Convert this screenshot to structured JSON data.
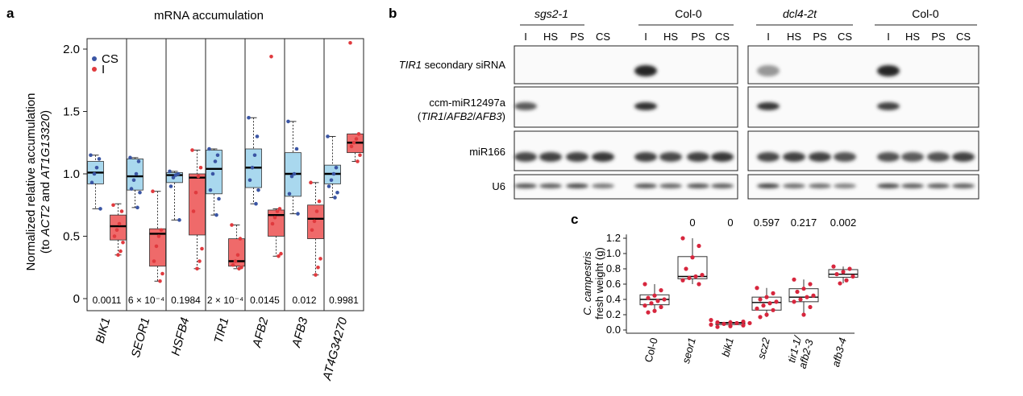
{
  "panels": {
    "a": {
      "label": "a",
      "title": "mRNA accumulation",
      "ylabel_line1": "Normalized relative accumulation",
      "ylabel_line2_parts": [
        {
          "t": "(to ",
          "i": false
        },
        {
          "t": "ACT2",
          "i": true
        },
        {
          "t": " and ",
          "i": false
        },
        {
          "t": "AT1G13320",
          "i": true
        },
        {
          "t": ")",
          "i": false
        }
      ],
      "legend": [
        {
          "label": "CS",
          "color": "#3a55a4"
        },
        {
          "label": "I",
          "color": "#e03a3e"
        }
      ]
    },
    "b": {
      "label": "b",
      "groups": [
        {
          "label": "sgs2-1",
          "italic": true
        },
        {
          "label": "Col-0",
          "italic": false
        },
        {
          "label": "dcl4-2t",
          "italic": true
        },
        {
          "label": "Col-0",
          "italic": false
        }
      ],
      "lanes": [
        "I",
        "HS",
        "PS",
        "CS"
      ],
      "rows": [
        {
          "parts": [
            {
              "t": "TIR1",
              "i": true
            },
            {
              "t": " secondary siRNA",
              "i": false
            }
          ]
        },
        {
          "parts": [
            {
              "t": "ccm-miR12497a",
              "i": false
            }
          ],
          "line2": [
            {
              "t": "(",
              "i": false
            },
            {
              "t": "TIR1",
              "i": true
            },
            {
              "t": "/",
              "i": false
            },
            {
              "t": "AFB2",
              "i": true
            },
            {
              "t": "/",
              "i": false
            },
            {
              "t": "AFB3",
              "i": true
            },
            {
              "t": ")",
              "i": false
            }
          ]
        },
        {
          "parts": [
            {
              "t": "miR166",
              "i": false
            }
          ]
        },
        {
          "parts": [
            {
              "t": "U6",
              "i": false
            }
          ]
        }
      ],
      "bands": [
        [
          [
            0,
            0,
            0,
            0
          ],
          [
            1.0,
            0,
            0,
            0
          ],
          [
            0.35,
            0,
            0,
            0
          ],
          [
            1.0,
            0,
            0,
            0
          ]
        ],
        [
          [
            0.7,
            0,
            0,
            0
          ],
          [
            0.95,
            0,
            0,
            0
          ],
          [
            0.9,
            0,
            0,
            0
          ],
          [
            0.85,
            0,
            0,
            0
          ]
        ],
        [
          [
            0.8,
            0.85,
            0.85,
            0.9
          ],
          [
            0.85,
            0.8,
            0.85,
            0.9
          ],
          [
            0.8,
            0.85,
            0.85,
            0.75
          ],
          [
            0.75,
            0.7,
            0.75,
            0.85
          ]
        ],
        [
          [
            0.75,
            0.7,
            0.8,
            0.55
          ],
          [
            0.75,
            0.65,
            0.75,
            0.7
          ],
          [
            0.85,
            0.6,
            0.6,
            0.5
          ],
          [
            0.8,
            0.7,
            0.7,
            0.7
          ]
        ]
      ]
    },
    "c": {
      "label": "c",
      "ylabel_line1": "C. campestris",
      "ylabel_line2": "fresh weight (g)",
      "pvalues": [
        "",
        "0",
        "0",
        "0.597",
        "0.217",
        "0.002"
      ]
    }
  },
  "chart_data": [
    {
      "type": "box",
      "title": "mRNA accumulation",
      "ylabel": "Normalized relative accumulation (to ACT2 and AT1G13320)",
      "ylim": [
        0,
        2.1
      ],
      "yticks": [
        0,
        0.5,
        1.0,
        1.5,
        2.0
      ],
      "ytick_labels": [
        "0",
        "0.5",
        "1.0",
        "1.5",
        "2.0"
      ],
      "categories": [
        "BIK1",
        "SEOR1",
        "HSFB4",
        "TIR1",
        "AFB2",
        "AFB3",
        "AT4G34270"
      ],
      "pvalues": [
        "0.0011",
        "6 × 10⁻⁴",
        "0.1984",
        "2 × 10⁻⁴",
        "0.0145",
        "0.012",
        "0.9981"
      ],
      "series": [
        {
          "name": "CS",
          "color": "#3a55a4",
          "fill": "#a9d8ee",
          "boxes": [
            {
              "min": 0.72,
              "q1": 0.92,
              "median": 1.01,
              "q3": 1.1,
              "max": 1.15
            },
            {
              "min": 0.73,
              "q1": 0.87,
              "median": 0.98,
              "q3": 1.12,
              "max": 1.13
            },
            {
              "min": 0.63,
              "q1": 0.93,
              "median": 0.99,
              "q3": 1.01,
              "max": 1.02
            },
            {
              "min": 0.67,
              "q1": 0.84,
              "median": 1.04,
              "q3": 1.19,
              "max": 1.2
            },
            {
              "min": 0.76,
              "q1": 0.89,
              "median": 1.05,
              "q3": 1.2,
              "max": 1.45
            },
            {
              "min": 0.68,
              "q1": 0.82,
              "median": 1.0,
              "q3": 1.17,
              "max": 1.42
            },
            {
              "min": 0.81,
              "q1": 0.92,
              "median": 1.0,
              "q3": 1.07,
              "max": 1.3
            }
          ],
          "points": [
            [
              1.15,
              1.12,
              1.05,
              1.0,
              0.93,
              0.72
            ],
            [
              1.13,
              1.1,
              1.0,
              0.95,
              0.88,
              0.85,
              0.73
            ],
            [
              1.02,
              1.0,
              0.99,
              0.97,
              0.9,
              0.63
            ],
            [
              1.2,
              1.15,
              1.1,
              1.0,
              0.87,
              0.8,
              0.67
            ],
            [
              1.45,
              1.3,
              1.15,
              1.05,
              0.95,
              0.87,
              0.76
            ],
            [
              1.42,
              1.2,
              1.0,
              0.98,
              0.84,
              0.68
            ],
            [
              1.3,
              1.05,
              1.0,
              0.95,
              0.9,
              0.85,
              0.81
            ]
          ]
        },
        {
          "name": "I",
          "color": "#e03a3e",
          "fill": "#ef6a6a",
          "boxes": [
            {
              "min": 0.35,
              "q1": 0.47,
              "median": 0.58,
              "q3": 0.67,
              "max": 0.76
            },
            {
              "min": 0.14,
              "q1": 0.26,
              "median": 0.52,
              "q3": 0.56,
              "max": 0.86
            },
            {
              "min": 0.24,
              "q1": 0.51,
              "median": 0.97,
              "q3": 1.0,
              "max": 1.19
            },
            {
              "min": 0.24,
              "q1": 0.26,
              "median": 0.3,
              "q3": 0.48,
              "max": 0.59
            },
            {
              "min": 0.34,
              "q1": 0.5,
              "median": 0.67,
              "q3": 0.71,
              "max": 0.72
            },
            {
              "min": 0.19,
              "q1": 0.48,
              "median": 0.64,
              "q3": 0.75,
              "max": 0.93
            },
            {
              "min": 1.1,
              "q1": 1.17,
              "median": 1.25,
              "q3": 1.32,
              "max": 1.32
            }
          ],
          "points": [
            [
              0.75,
              0.7,
              0.6,
              0.55,
              0.5,
              0.45,
              0.38,
              0.35
            ],
            [
              0.86,
              0.55,
              0.5,
              0.42,
              0.3,
              0.2,
              0.14
            ],
            [
              1.19,
              1.05,
              0.98,
              0.85,
              0.7,
              0.4,
              0.3,
              0.24
            ],
            [
              0.59,
              0.48,
              0.35,
              0.3,
              0.27,
              0.25,
              0.24
            ],
            [
              1.94,
              0.72,
              0.7,
              0.65,
              0.6,
              0.36,
              0.34
            ],
            [
              0.93,
              0.78,
              0.7,
              0.62,
              0.55,
              0.32,
              0.25,
              0.19
            ],
            [
              2.05,
              1.32,
              1.28,
              1.25,
              1.22,
              1.15,
              1.1
            ]
          ]
        }
      ],
      "legend_position": "top-left"
    },
    {
      "type": "box",
      "ylabel": "C. campestris fresh weight (g)",
      "ylim": [
        0,
        1.3
      ],
      "yticks": [
        0,
        0.2,
        0.4,
        0.6,
        0.8,
        1.0,
        1.2
      ],
      "ytick_labels": [
        "0.0",
        "0.2",
        "0.4",
        "0.6",
        "0.8",
        "1.0",
        "1.2"
      ],
      "categories": [
        "Col-0",
        "seor1",
        "bik1",
        "scz2",
        "tir1-1/afb2-3",
        "afb3-4"
      ],
      "category_italic": [
        false,
        true,
        true,
        true,
        true,
        true
      ],
      "boxes": [
        {
          "min": 0.23,
          "q1": 0.33,
          "median": 0.4,
          "q3": 0.46,
          "max": 0.6
        },
        {
          "min": 0.6,
          "q1": 0.67,
          "median": 0.7,
          "q3": 0.96,
          "max": 1.2
        },
        {
          "min": 0.04,
          "q1": 0.07,
          "median": 0.09,
          "q3": 0.1,
          "max": 0.13
        },
        {
          "min": 0.17,
          "q1": 0.26,
          "median": 0.36,
          "q3": 0.43,
          "max": 0.55
        },
        {
          "min": 0.2,
          "q1": 0.37,
          "median": 0.43,
          "q3": 0.54,
          "max": 0.66
        },
        {
          "min": 0.61,
          "q1": 0.69,
          "median": 0.73,
          "q3": 0.79,
          "max": 0.83
        }
      ],
      "points": [
        [
          0.6,
          0.52,
          0.45,
          0.42,
          0.4,
          0.38,
          0.35,
          0.32,
          0.3,
          0.25,
          0.23
        ],
        [
          1.2,
          1.1,
          0.95,
          0.8,
          0.72,
          0.7,
          0.68,
          0.65,
          0.6
        ],
        [
          0.13,
          0.11,
          0.1,
          0.1,
          0.09,
          0.09,
          0.08,
          0.07,
          0.06,
          0.05,
          0.04
        ],
        [
          0.55,
          0.48,
          0.43,
          0.4,
          0.37,
          0.35,
          0.32,
          0.28,
          0.26,
          0.2,
          0.17
        ],
        [
          0.66,
          0.6,
          0.54,
          0.5,
          0.45,
          0.43,
          0.4,
          0.37,
          0.3,
          0.2
        ],
        [
          0.83,
          0.8,
          0.76,
          0.73,
          0.7,
          0.65,
          0.61
        ]
      ],
      "point_color": "#d7263d",
      "pvalues": [
        "",
        "0",
        "0",
        "0.597",
        "0.217",
        "0.002"
      ]
    }
  ]
}
